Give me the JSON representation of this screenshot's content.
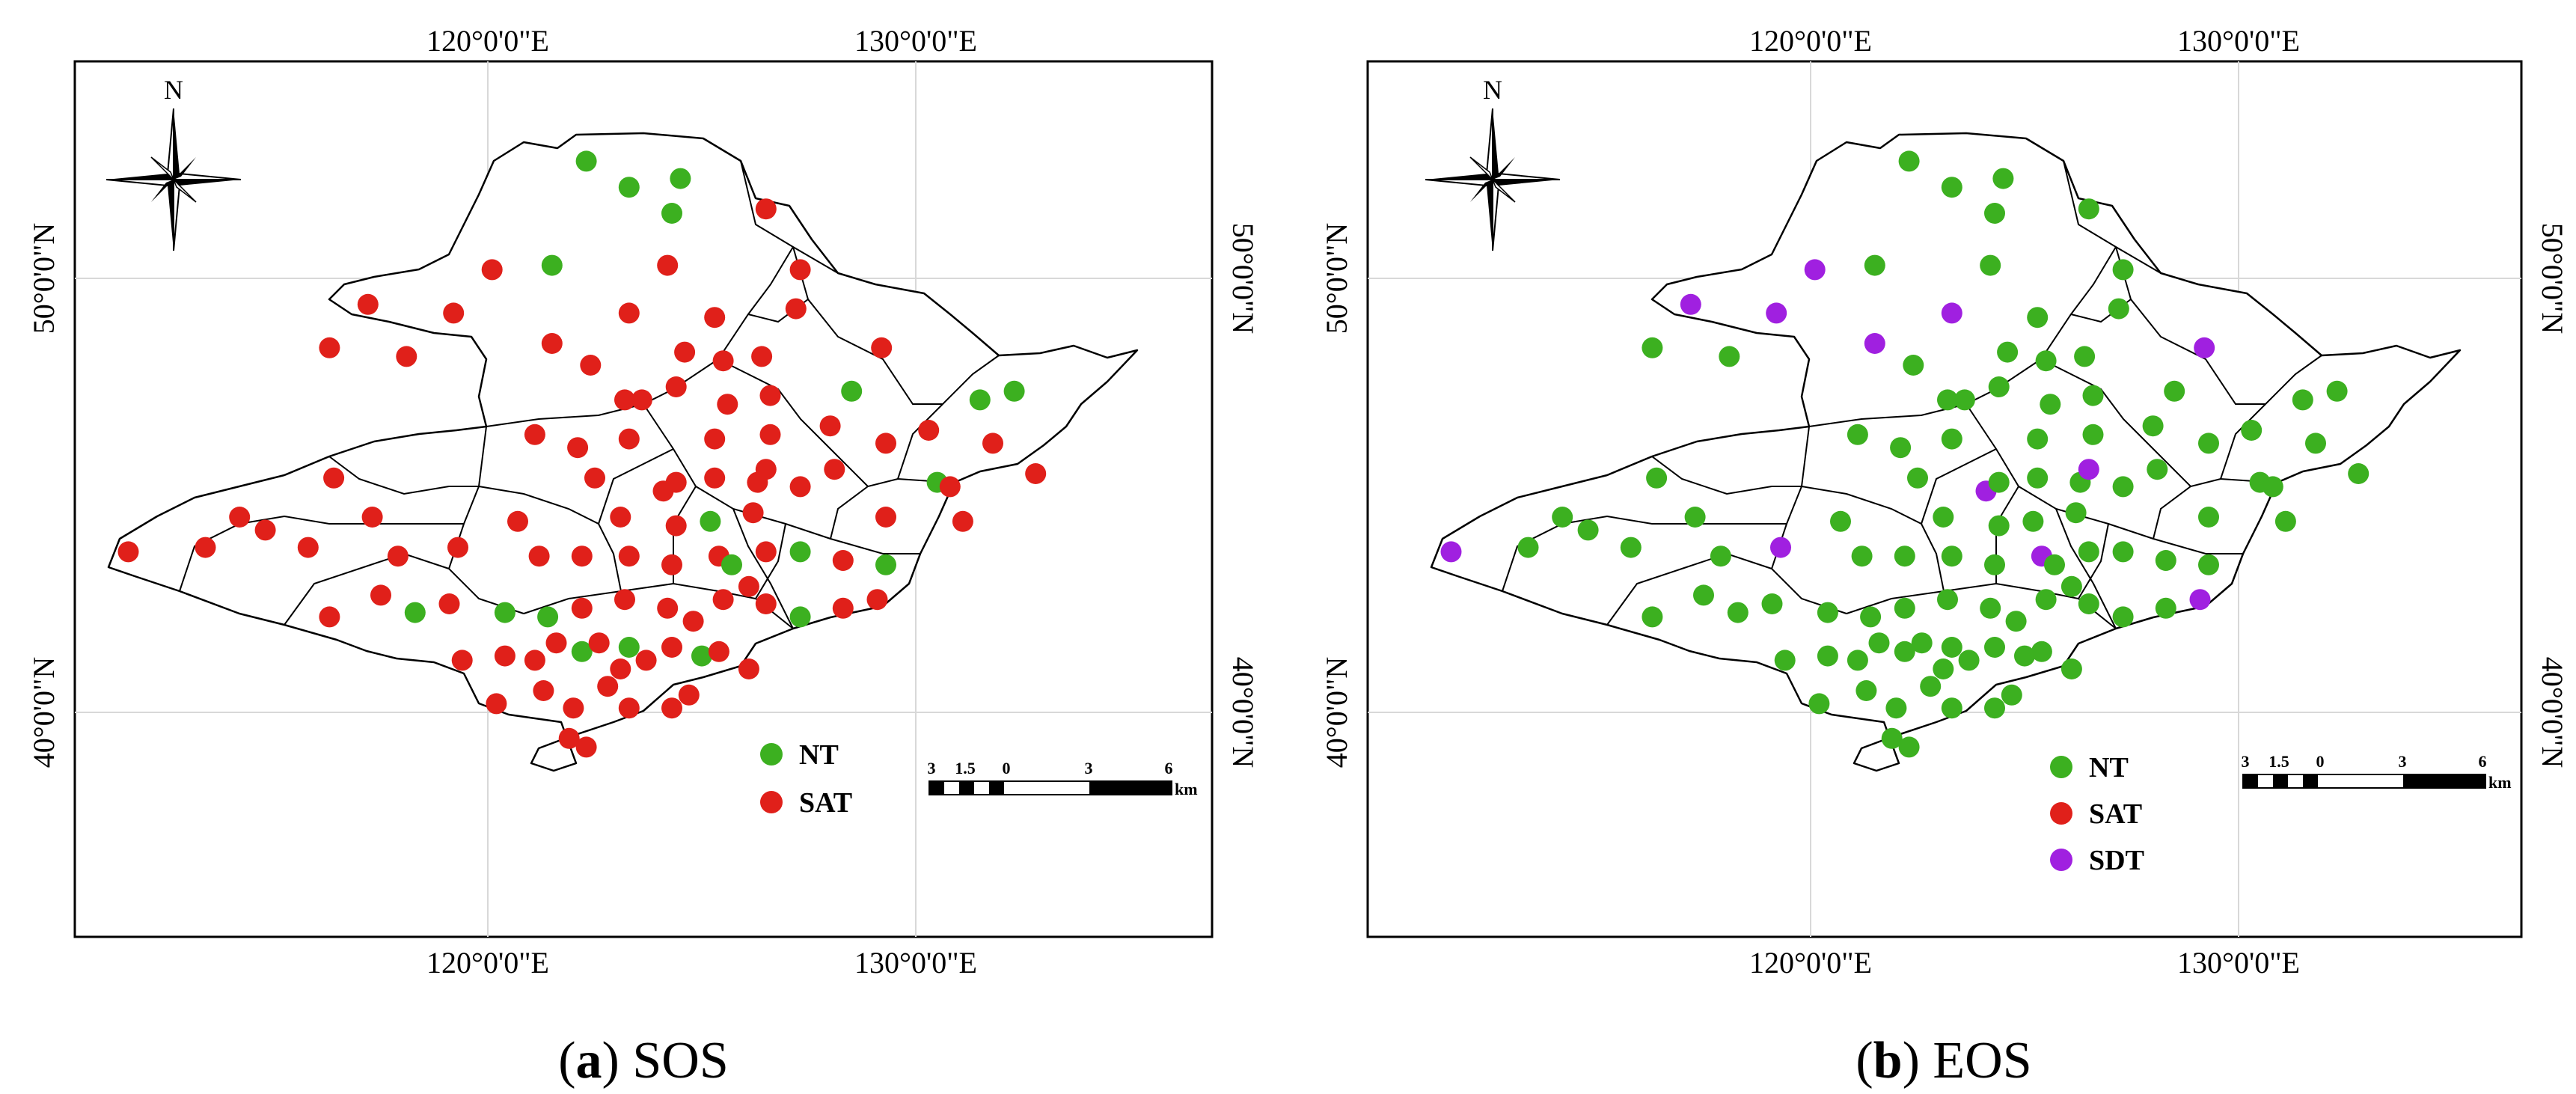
{
  "colors": {
    "NT": "#3cb020",
    "SAT": "#e0201a",
    "SDT": "#a020e0",
    "frame": "#000000",
    "grid": "#d8d8d8"
  },
  "panels": [
    {
      "id": "a",
      "caption_letter": "a",
      "caption_text": "SOS",
      "top_ticks": [
        "120°0'0\"E",
        "130°0'0\"E"
      ],
      "bottom_ticks": [
        "120°0'0\"E",
        "130°0'0\"E"
      ],
      "left_ticks": [
        "50°0'0\"N",
        "40°0'0\"N"
      ],
      "right_ticks": [
        "50°0'0\"N",
        "40°0'0\"N"
      ],
      "north_label": "N",
      "legend": [
        "NT",
        "SAT"
      ],
      "scale": {
        "labels": [
          "3",
          "1.5",
          "0",
          "3",
          "6"
        ],
        "unit": "km"
      }
    },
    {
      "id": "b",
      "caption_letter": "b",
      "caption_text": "EOS",
      "top_ticks": [
        "120°0'0\"E",
        "130°0'0\"E"
      ],
      "bottom_ticks": [
        "120°0'0\"E",
        "130°0'0\"E"
      ],
      "left_ticks": [
        "50°0'0\"N",
        "40°0'0\"N"
      ],
      "right_ticks": [
        "50°0'0\"N",
        "40°0'0\"N"
      ],
      "north_label": "N",
      "legend": [
        "NT",
        "SAT",
        "SDT"
      ],
      "scale": {
        "labels": [
          "3",
          "1.5",
          "0",
          "3",
          "6"
        ],
        "unit": "km"
      }
    }
  ],
  "stations": [
    {
      "lon": 122.3,
      "lat": 52.7,
      "sos": "NT",
      "eos": "NT"
    },
    {
      "lon": 123.3,
      "lat": 52.1,
      "sos": "NT",
      "eos": "NT"
    },
    {
      "lon": 124.5,
      "lat": 52.3,
      "sos": "NT",
      "eos": "NT"
    },
    {
      "lon": 124.3,
      "lat": 51.5,
      "sos": "NT",
      "eos": "NT"
    },
    {
      "lon": 121.5,
      "lat": 50.3,
      "sos": "NT",
      "eos": "NT"
    },
    {
      "lon": 126.5,
      "lat": 51.6,
      "sos": "SAT",
      "eos": "NT"
    },
    {
      "lon": 120.1,
      "lat": 50.2,
      "sos": "SAT",
      "eos": "SDT"
    },
    {
      "lon": 124.2,
      "lat": 50.3,
      "sos": "SAT",
      "eos": "NT"
    },
    {
      "lon": 127.3,
      "lat": 50.2,
      "sos": "SAT",
      "eos": "NT"
    },
    {
      "lon": 117.2,
      "lat": 49.4,
      "sos": "SAT",
      "eos": "SDT"
    },
    {
      "lon": 119.2,
      "lat": 49.2,
      "sos": "SAT",
      "eos": "SDT"
    },
    {
      "lon": 123.3,
      "lat": 49.2,
      "sos": "SAT",
      "eos": "SDT"
    },
    {
      "lon": 125.3,
      "lat": 49.1,
      "sos": "SAT",
      "eos": "NT"
    },
    {
      "lon": 127.2,
      "lat": 49.3,
      "sos": "SAT",
      "eos": "NT"
    },
    {
      "lon": 116.3,
      "lat": 48.4,
      "sos": "SAT",
      "eos": "NT"
    },
    {
      "lon": 118.1,
      "lat": 48.2,
      "sos": "SAT",
      "eos": "NT"
    },
    {
      "lon": 121.5,
      "lat": 48.5,
      "sos": "SAT",
      "eos": "SDT"
    },
    {
      "lon": 122.4,
      "lat": 48.0,
      "sos": "SAT",
      "eos": "NT"
    },
    {
      "lon": 124.6,
      "lat": 48.3,
      "sos": "SAT",
      "eos": "NT"
    },
    {
      "lon": 125.5,
      "lat": 48.1,
      "sos": "SAT",
      "eos": "NT"
    },
    {
      "lon": 126.4,
      "lat": 48.2,
      "sos": "SAT",
      "eos": "NT"
    },
    {
      "lon": 129.2,
      "lat": 48.4,
      "sos": "SAT",
      "eos": "SDT"
    },
    {
      "lon": 128.5,
      "lat": 47.4,
      "sos": "NT",
      "eos": "NT"
    },
    {
      "lon": 131.5,
      "lat": 47.2,
      "sos": "NT",
      "eos": "NT"
    },
    {
      "lon": 132.3,
      "lat": 47.4,
      "sos": "NT",
      "eos": "NT"
    },
    {
      "lon": 123.2,
      "lat": 47.2,
      "sos": "SAT",
      "eos": "NT"
    },
    {
      "lon": 123.6,
      "lat": 47.2,
      "sos": "SAT",
      "eos": "NT"
    },
    {
      "lon": 124.4,
      "lat": 47.5,
      "sos": "SAT",
      "eos": "NT"
    },
    {
      "lon": 125.6,
      "lat": 47.1,
      "sos": "SAT",
      "eos": "NT"
    },
    {
      "lon": 126.6,
      "lat": 47.3,
      "sos": "SAT",
      "eos": "NT"
    },
    {
      "lon": 128.0,
      "lat": 46.6,
      "sos": "SAT",
      "eos": "NT"
    },
    {
      "lon": 130.3,
      "lat": 46.5,
      "sos": "SAT",
      "eos": "NT"
    },
    {
      "lon": 121.1,
      "lat": 46.4,
      "sos": "SAT",
      "eos": "NT"
    },
    {
      "lon": 122.1,
      "lat": 46.1,
      "sos": "SAT",
      "eos": "NT"
    },
    {
      "lon": 123.3,
      "lat": 46.3,
      "sos": "SAT",
      "eos": "NT"
    },
    {
      "lon": 125.3,
      "lat": 46.3,
      "sos": "SAT",
      "eos": "NT"
    },
    {
      "lon": 126.6,
      "lat": 46.4,
      "sos": "SAT",
      "eos": "NT"
    },
    {
      "lon": 129.3,
      "lat": 46.2,
      "sos": "SAT",
      "eos": "NT"
    },
    {
      "lon": 131.8,
      "lat": 46.2,
      "sos": "SAT",
      "eos": "NT"
    },
    {
      "lon": 116.4,
      "lat": 45.4,
      "sos": "SAT",
      "eos": "NT"
    },
    {
      "lon": 122.5,
      "lat": 45.4,
      "sos": "SAT",
      "eos": "NT"
    },
    {
      "lon": 124.1,
      "lat": 45.1,
      "sos": "SAT",
      "eos": "SDT"
    },
    {
      "lon": 124.4,
      "lat": 45.3,
      "sos": "SAT",
      "eos": "NT"
    },
    {
      "lon": 125.3,
      "lat": 45.4,
      "sos": "SAT",
      "eos": "NT"
    },
    {
      "lon": 126.3,
      "lat": 45.3,
      "sos": "SAT",
      "eos": "NT"
    },
    {
      "lon": 126.5,
      "lat": 45.6,
      "sos": "SAT",
      "eos": "SDT"
    },
    {
      "lon": 127.3,
      "lat": 45.2,
      "sos": "SAT",
      "eos": "NT"
    },
    {
      "lon": 128.1,
      "lat": 45.6,
      "sos": "SAT",
      "eos": "NT"
    },
    {
      "lon": 130.5,
      "lat": 45.3,
      "sos": "NT",
      "eos": "NT"
    },
    {
      "lon": 130.8,
      "lat": 45.2,
      "sos": "SAT",
      "eos": "NT"
    },
    {
      "lon": 132.8,
      "lat": 45.5,
      "sos": "SAT",
      "eos": "NT"
    },
    {
      "lon": 114.2,
      "lat": 44.5,
      "sos": "SAT",
      "eos": "NT"
    },
    {
      "lon": 114.8,
      "lat": 44.2,
      "sos": "SAT",
      "eos": "NT"
    },
    {
      "lon": 117.3,
      "lat": 44.5,
      "sos": "SAT",
      "eos": "NT"
    },
    {
      "lon": 120.7,
      "lat": 44.4,
      "sos": "SAT",
      "eos": "NT"
    },
    {
      "lon": 123.1,
      "lat": 44.5,
      "sos": "SAT",
      "eos": "NT"
    },
    {
      "lon": 124.4,
      "lat": 44.3,
      "sos": "SAT",
      "eos": "NT"
    },
    {
      "lon": 125.2,
      "lat": 44.4,
      "sos": "NT",
      "eos": "NT"
    },
    {
      "lon": 126.2,
      "lat": 44.6,
      "sos": "SAT",
      "eos": "NT"
    },
    {
      "lon": 129.3,
      "lat": 44.5,
      "sos": "SAT",
      "eos": "NT"
    },
    {
      "lon": 131.1,
      "lat": 44.4,
      "sos": "SAT",
      "eos": "NT"
    },
    {
      "lon": 111.6,
      "lat": 43.7,
      "sos": "SAT",
      "eos": "SDT"
    },
    {
      "lon": 113.4,
      "lat": 43.8,
      "sos": "SAT",
      "eos": "NT"
    },
    {
      "lon": 115.8,
      "lat": 43.8,
      "sos": "SAT",
      "eos": "NT"
    },
    {
      "lon": 117.9,
      "lat": 43.6,
      "sos": "SAT",
      "eos": "NT"
    },
    {
      "lon": 119.3,
      "lat": 43.8,
      "sos": "SAT",
      "eos": "SDT"
    },
    {
      "lon": 121.2,
      "lat": 43.6,
      "sos": "SAT",
      "eos": "NT"
    },
    {
      "lon": 122.2,
      "lat": 43.6,
      "sos": "SAT",
      "eos": "NT"
    },
    {
      "lon": 123.3,
      "lat": 43.6,
      "sos": "SAT",
      "eos": "NT"
    },
    {
      "lon": 124.3,
      "lat": 43.4,
      "sos": "SAT",
      "eos": "NT"
    },
    {
      "lon": 125.4,
      "lat": 43.6,
      "sos": "SAT",
      "eos": "SDT"
    },
    {
      "lon": 125.7,
      "lat": 43.4,
      "sos": "NT",
      "eos": "NT"
    },
    {
      "lon": 126.5,
      "lat": 43.7,
      "sos": "SAT",
      "eos": "NT"
    },
    {
      "lon": 127.3,
      "lat": 43.7,
      "sos": "NT",
      "eos": "NT"
    },
    {
      "lon": 128.3,
      "lat": 43.5,
      "sos": "SAT",
      "eos": "NT"
    },
    {
      "lon": 129.3,
      "lat": 43.4,
      "sos": "NT",
      "eos": "NT"
    },
    {
      "lon": 116.3,
      "lat": 42.2,
      "sos": "SAT",
      "eos": "NT"
    },
    {
      "lon": 117.5,
      "lat": 42.7,
      "sos": "SAT",
      "eos": "NT"
    },
    {
      "lon": 118.3,
      "lat": 42.3,
      "sos": "NT",
      "eos": "NT"
    },
    {
      "lon": 119.1,
      "lat": 42.5,
      "sos": "SAT",
      "eos": "NT"
    },
    {
      "lon": 120.4,
      "lat": 42.3,
      "sos": "NT",
      "eos": "NT"
    },
    {
      "lon": 121.4,
      "lat": 42.2,
      "sos": "NT",
      "eos": "NT"
    },
    {
      "lon": 122.2,
      "lat": 42.4,
      "sos": "SAT",
      "eos": "NT"
    },
    {
      "lon": 123.2,
      "lat": 42.6,
      "sos": "SAT",
      "eos": "NT"
    },
    {
      "lon": 124.2,
      "lat": 42.4,
      "sos": "SAT",
      "eos": "NT"
    },
    {
      "lon": 124.8,
      "lat": 42.1,
      "sos": "SAT",
      "eos": "NT"
    },
    {
      "lon": 125.5,
      "lat": 42.6,
      "sos": "SAT",
      "eos": "NT"
    },
    {
      "lon": 126.1,
      "lat": 42.9,
      "sos": "SAT",
      "eos": "NT"
    },
    {
      "lon": 126.5,
      "lat": 42.5,
      "sos": "SAT",
      "eos": "NT"
    },
    {
      "lon": 127.3,
      "lat": 42.2,
      "sos": "NT",
      "eos": "NT"
    },
    {
      "lon": 128.3,
      "lat": 42.4,
      "sos": "SAT",
      "eos": "NT"
    },
    {
      "lon": 129.1,
      "lat": 42.6,
      "sos": "SAT",
      "eos": "SDT"
    },
    {
      "lon": 119.4,
      "lat": 41.2,
      "sos": "SAT",
      "eos": "NT"
    },
    {
      "lon": 120.4,
      "lat": 41.3,
      "sos": "SAT",
      "eos": "NT"
    },
    {
      "lon": 121.1,
      "lat": 41.2,
      "sos": "SAT",
      "eos": "NT"
    },
    {
      "lon": 121.6,
      "lat": 41.6,
      "sos": "SAT",
      "eos": "NT"
    },
    {
      "lon": 122.2,
      "lat": 41.4,
      "sos": "NT",
      "eos": "NT"
    },
    {
      "lon": 122.6,
      "lat": 41.6,
      "sos": "SAT",
      "eos": "NT"
    },
    {
      "lon": 123.1,
      "lat": 41.0,
      "sos": "SAT",
      "eos": "NT"
    },
    {
      "lon": 123.3,
      "lat": 41.5,
      "sos": "NT",
      "eos": "NT"
    },
    {
      "lon": 123.7,
      "lat": 41.2,
      "sos": "SAT",
      "eos": "NT"
    },
    {
      "lon": 124.3,
      "lat": 41.5,
      "sos": "SAT",
      "eos": "NT"
    },
    {
      "lon": 125.0,
      "lat": 41.3,
      "sos": "NT",
      "eos": "NT"
    },
    {
      "lon": 125.4,
      "lat": 41.4,
      "sos": "SAT",
      "eos": "NT"
    },
    {
      "lon": 126.1,
      "lat": 41.0,
      "sos": "SAT",
      "eos": "NT"
    },
    {
      "lon": 120.2,
      "lat": 40.2,
      "sos": "SAT",
      "eos": "NT"
    },
    {
      "lon": 121.3,
      "lat": 40.5,
      "sos": "SAT",
      "eos": "NT"
    },
    {
      "lon": 122.0,
      "lat": 40.1,
      "sos": "SAT",
      "eos": "NT"
    },
    {
      "lon": 122.8,
      "lat": 40.6,
      "sos": "SAT",
      "eos": "NT"
    },
    {
      "lon": 123.3,
      "lat": 40.1,
      "sos": "SAT",
      "eos": "NT"
    },
    {
      "lon": 124.3,
      "lat": 40.1,
      "sos": "SAT",
      "eos": "NT"
    },
    {
      "lon": 124.7,
      "lat": 40.4,
      "sos": "SAT",
      "eos": "NT"
    },
    {
      "lon": 121.9,
      "lat": 39.4,
      "sos": "SAT",
      "eos": "NT"
    },
    {
      "lon": 122.3,
      "lat": 39.2,
      "sos": "SAT",
      "eos": "NT"
    }
  ]
}
